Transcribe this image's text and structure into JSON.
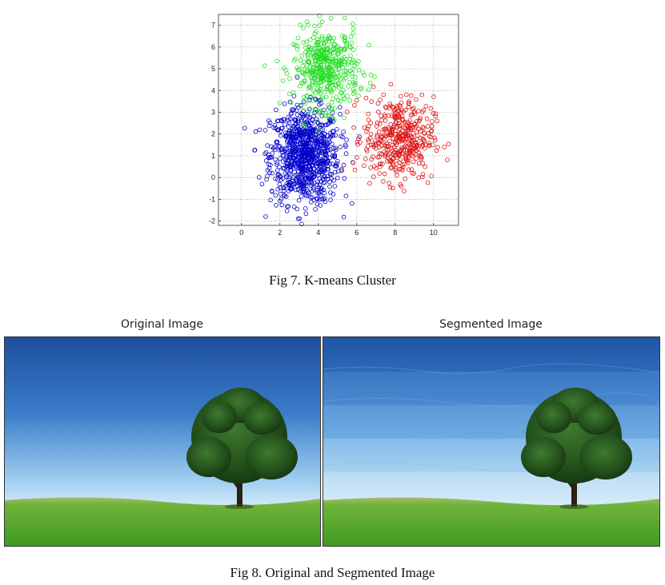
{
  "figure7": {
    "caption": "Fig 7. K-means Cluster",
    "chart_data": {
      "type": "scatter",
      "title": "",
      "xlabel": "",
      "ylabel": "",
      "xlim": [
        -1.2,
        11.3
      ],
      "ylim": [
        -2.2,
        7.5
      ],
      "x_ticks": [
        0,
        2,
        4,
        6,
        8,
        10
      ],
      "y_ticks": [
        -2,
        -1,
        0,
        1,
        2,
        3,
        4,
        5,
        6,
        7
      ],
      "grid": true,
      "marker": "open-circle",
      "series": [
        {
          "color": "#0000cc",
          "count": 900,
          "center": [
            3.3,
            1.0
          ],
          "spread": [
            0.9,
            1.1
          ]
        },
        {
          "color": "#22dd22",
          "count": 450,
          "center": [
            4.4,
            5.0
          ],
          "spread": [
            0.85,
            0.9
          ]
        },
        {
          "color": "#dd1111",
          "count": 420,
          "center": [
            8.2,
            1.8
          ],
          "spread": [
            0.9,
            0.95
          ]
        }
      ]
    }
  },
  "figure8": {
    "caption": "Fig 8. Original and Segmented Image",
    "original_title": "Original Image",
    "segmented_title": "Segmented Image"
  }
}
